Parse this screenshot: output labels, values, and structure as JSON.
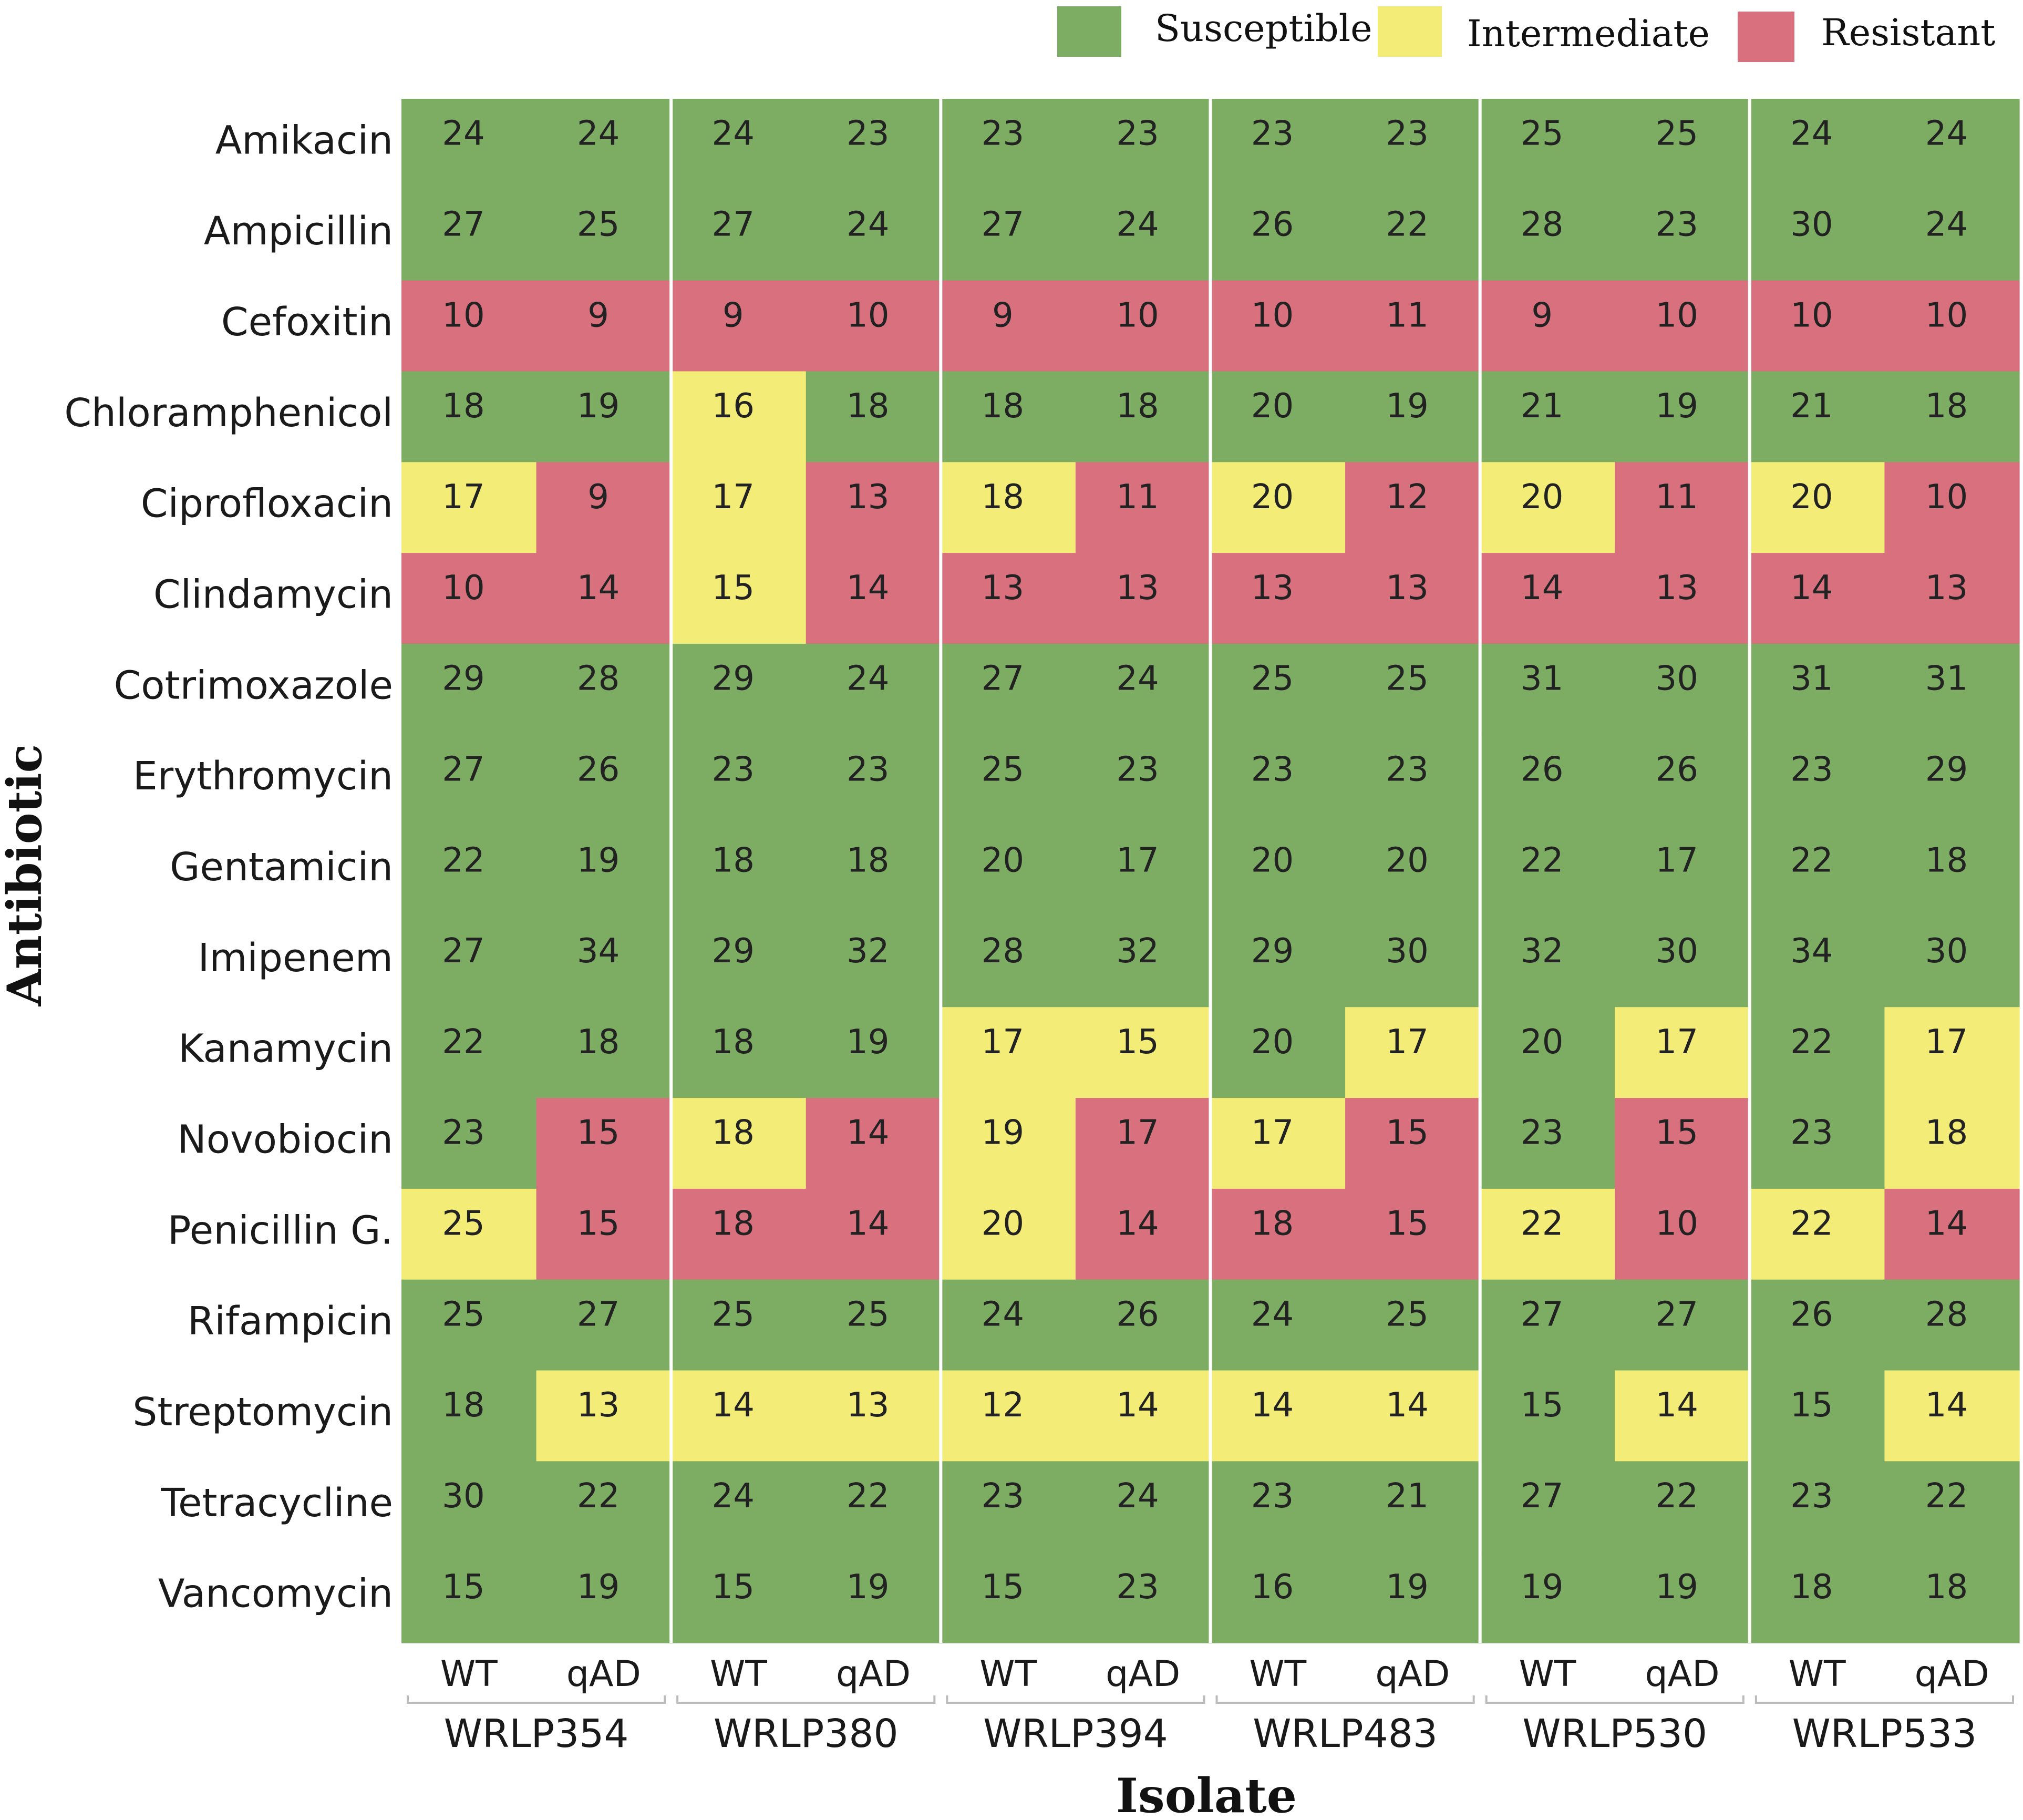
{
  "chart_data": {
    "type": "heatmap",
    "title": "",
    "xlabel": "Isolate",
    "ylabel": "Antibiotic",
    "legend": [
      {
        "label": "Susceptible",
        "color": "#7cad63"
      },
      {
        "label": "Intermediate",
        "color": "#f3ec77"
      },
      {
        "label": "Resistant",
        "color": "#d8707e"
      }
    ],
    "isolates": [
      "WRLP354",
      "WRLP380",
      "WRLP394",
      "WRLP483",
      "WRLP530",
      "WRLP533"
    ],
    "strains": [
      "WT",
      "qAD"
    ],
    "antibiotics": [
      "Amikacin",
      "Ampicillin",
      "Cefoxitin",
      "Chloramphenicol",
      "Ciprofloxacin",
      "Clindamycin",
      "Cotrimoxazole",
      "Erythromycin",
      "Gentamicin",
      "Imipenem",
      "Kanamycin",
      "Novobiocin",
      "Penicillin G.",
      "Rifampicin",
      "Streptomycin",
      "Tetracycline",
      "Vancomycin"
    ],
    "values": [
      [
        24,
        24,
        24,
        23,
        23,
        23,
        23,
        23,
        25,
        25,
        24,
        24
      ],
      [
        27,
        25,
        27,
        24,
        27,
        24,
        26,
        22,
        28,
        23,
        30,
        24
      ],
      [
        10,
        9,
        9,
        10,
        9,
        10,
        10,
        11,
        9,
        10,
        10,
        10
      ],
      [
        18,
        19,
        16,
        18,
        18,
        18,
        20,
        19,
        21,
        19,
        21,
        18
      ],
      [
        17,
        9,
        17,
        13,
        18,
        11,
        20,
        12,
        20,
        11,
        20,
        10
      ],
      [
        10,
        14,
        15,
        14,
        13,
        13,
        13,
        13,
        14,
        13,
        14,
        13
      ],
      [
        29,
        28,
        29,
        24,
        27,
        24,
        25,
        25,
        31,
        30,
        31,
        31
      ],
      [
        27,
        26,
        23,
        23,
        25,
        23,
        23,
        23,
        26,
        26,
        23,
        29
      ],
      [
        22,
        19,
        18,
        18,
        20,
        17,
        20,
        20,
        22,
        17,
        22,
        18
      ],
      [
        27,
        34,
        29,
        32,
        28,
        32,
        29,
        30,
        32,
        30,
        34,
        30
      ],
      [
        22,
        18,
        18,
        19,
        17,
        15,
        20,
        17,
        20,
        17,
        22,
        17
      ],
      [
        23,
        15,
        18,
        14,
        19,
        17,
        17,
        15,
        23,
        15,
        23,
        18
      ],
      [
        25,
        15,
        18,
        14,
        20,
        14,
        18,
        15,
        22,
        10,
        22,
        14
      ],
      [
        25,
        27,
        25,
        25,
        24,
        26,
        24,
        25,
        27,
        27,
        26,
        28
      ],
      [
        18,
        13,
        14,
        13,
        12,
        14,
        14,
        14,
        15,
        14,
        15,
        14
      ],
      [
        30,
        22,
        24,
        22,
        23,
        24,
        23,
        21,
        27,
        22,
        23,
        22
      ],
      [
        15,
        19,
        15,
        19,
        15,
        23,
        16,
        19,
        19,
        19,
        18,
        18
      ]
    ],
    "categories": [
      [
        "S",
        "S",
        "S",
        "S",
        "S",
        "S",
        "S",
        "S",
        "S",
        "S",
        "S",
        "S"
      ],
      [
        "S",
        "S",
        "S",
        "S",
        "S",
        "S",
        "S",
        "S",
        "S",
        "S",
        "S",
        "S"
      ],
      [
        "R",
        "R",
        "R",
        "R",
        "R",
        "R",
        "R",
        "R",
        "R",
        "R",
        "R",
        "R"
      ],
      [
        "S",
        "S",
        "I",
        "S",
        "S",
        "S",
        "S",
        "S",
        "S",
        "S",
        "S",
        "S"
      ],
      [
        "I",
        "R",
        "I",
        "R",
        "I",
        "R",
        "I",
        "R",
        "I",
        "R",
        "I",
        "R"
      ],
      [
        "R",
        "R",
        "I",
        "R",
        "R",
        "R",
        "R",
        "R",
        "R",
        "R",
        "R",
        "R"
      ],
      [
        "S",
        "S",
        "S",
        "S",
        "S",
        "S",
        "S",
        "S",
        "S",
        "S",
        "S",
        "S"
      ],
      [
        "S",
        "S",
        "S",
        "S",
        "S",
        "S",
        "S",
        "S",
        "S",
        "S",
        "S",
        "S"
      ],
      [
        "S",
        "S",
        "S",
        "S",
        "S",
        "S",
        "S",
        "S",
        "S",
        "S",
        "S",
        "S"
      ],
      [
        "S",
        "S",
        "S",
        "S",
        "S",
        "S",
        "S",
        "S",
        "S",
        "S",
        "S",
        "S"
      ],
      [
        "S",
        "S",
        "S",
        "S",
        "I",
        "I",
        "S",
        "I",
        "S",
        "I",
        "S",
        "I"
      ],
      [
        "S",
        "R",
        "I",
        "R",
        "I",
        "R",
        "I",
        "R",
        "S",
        "R",
        "S",
        "I"
      ],
      [
        "I",
        "R",
        "R",
        "R",
        "I",
        "R",
        "R",
        "R",
        "I",
        "R",
        "I",
        "R"
      ],
      [
        "S",
        "S",
        "S",
        "S",
        "S",
        "S",
        "S",
        "S",
        "S",
        "S",
        "S",
        "S"
      ],
      [
        "S",
        "I",
        "I",
        "I",
        "I",
        "I",
        "I",
        "I",
        "S",
        "I",
        "S",
        "I"
      ],
      [
        "S",
        "S",
        "S",
        "S",
        "S",
        "S",
        "S",
        "S",
        "S",
        "S",
        "S",
        "S"
      ],
      [
        "S",
        "S",
        "S",
        "S",
        "S",
        "S",
        "S",
        "S",
        "S",
        "S",
        "S",
        "S"
      ]
    ]
  }
}
